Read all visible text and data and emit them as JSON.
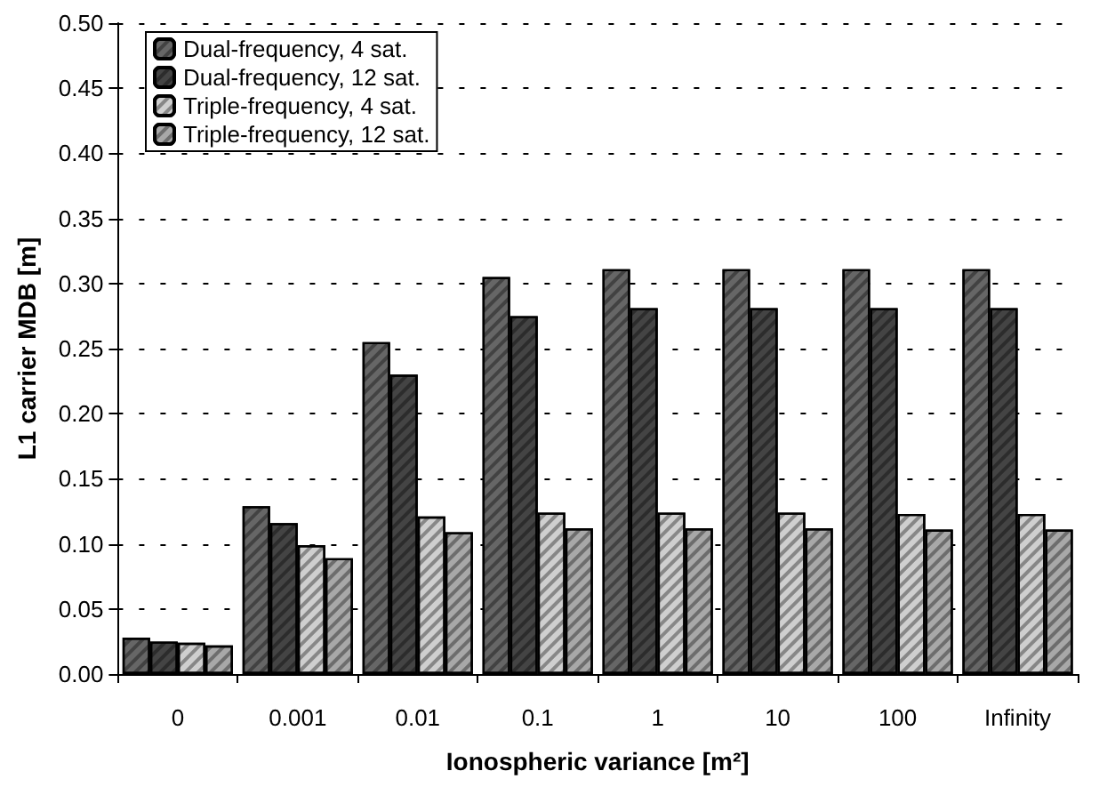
{
  "chart_data": {
    "type": "bar",
    "xlabel": "Ionospheric variance [m²]",
    "ylabel": "L1 carrier MDB [m]",
    "categories": [
      "0",
      "0.001",
      "0.01",
      "0.1",
      "1",
      "10",
      "100",
      "Infinity"
    ],
    "series": [
      {
        "name": "Dual-frequency, 4 sat.",
        "color": "#666666",
        "values": [
          0.028,
          0.129,
          0.255,
          0.305,
          0.311,
          0.311,
          0.311,
          0.311
        ]
      },
      {
        "name": "Dual-frequency, 12 sat.",
        "color": "#444444",
        "values": [
          0.025,
          0.116,
          0.23,
          0.275,
          0.281,
          0.281,
          0.281,
          0.281
        ]
      },
      {
        "name": "Triple-frequency, 4 sat.",
        "color": "#cfcfcf",
        "values": [
          0.024,
          0.099,
          0.121,
          0.124,
          0.124,
          0.124,
          0.123,
          0.123
        ]
      },
      {
        "name": "Triple-frequency, 12 sat.",
        "color": "#a8a8a8",
        "values": [
          0.022,
          0.089,
          0.109,
          0.112,
          0.112,
          0.112,
          0.111,
          0.111
        ]
      }
    ],
    "ylim": [
      0,
      0.5
    ],
    "yticks": [
      {
        "value": 0,
        "label": "0.00"
      },
      {
        "value": 0.05,
        "label": "0.05"
      },
      {
        "value": 0.1,
        "label": "0.10"
      },
      {
        "value": 0.15,
        "label": "0.15"
      },
      {
        "value": 0.2,
        "label": "0.20"
      },
      {
        "value": 0.25,
        "label": "0.25"
      },
      {
        "value": 0.3,
        "label": "0.30"
      },
      {
        "value": 0.35,
        "label": "0.35"
      },
      {
        "value": 0.4,
        "label": "0.40"
      },
      {
        "value": 0.45,
        "label": "0.45"
      },
      {
        "value": 0.5,
        "label": "0.50"
      }
    ],
    "grid": "y",
    "legend": "top left"
  }
}
